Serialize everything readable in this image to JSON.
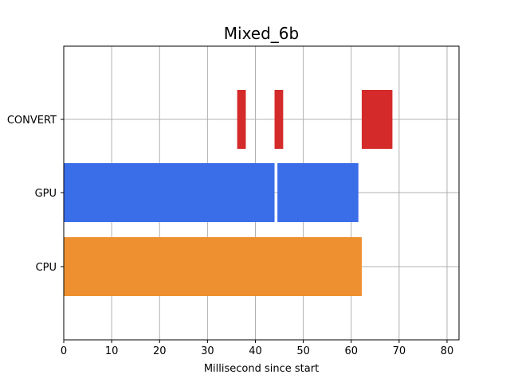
{
  "chart_data": {
    "type": "bar",
    "orientation": "horizontal",
    "chart_subtype": "gantt",
    "title": "Mixed_6b",
    "xlabel": "Millisecond since start",
    "ylabel": "",
    "xlim": [
      0,
      82.5
    ],
    "x_ticks": [
      0,
      10,
      20,
      30,
      40,
      50,
      60,
      70,
      80
    ],
    "categories": [
      "CPU",
      "GPU",
      "CONVERT"
    ],
    "grid": true,
    "legend": "none",
    "series": [
      {
        "category": "CPU",
        "color": "#EE9030",
        "intervals": [
          [
            0,
            62.2
          ]
        ]
      },
      {
        "category": "GPU",
        "color": "#3A6DE8",
        "intervals": [
          [
            0,
            44.0
          ],
          [
            44.6,
            61.5
          ]
        ]
      },
      {
        "category": "CONVERT",
        "color": "#D42A2A",
        "intervals": [
          [
            36.2,
            38.0
          ],
          [
            44.0,
            45.8
          ],
          [
            62.2,
            68.6
          ]
        ]
      }
    ]
  }
}
